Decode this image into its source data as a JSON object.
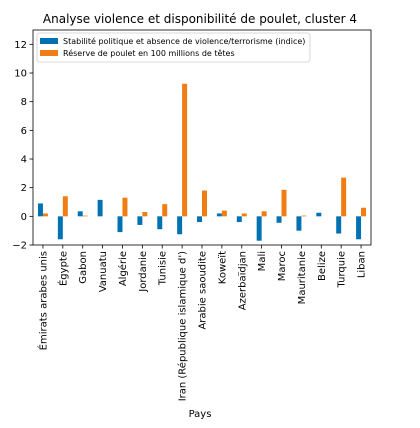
{
  "chart_data": {
    "type": "bar",
    "title": "Analyse violence et disponibilité de poulet, cluster 4",
    "xlabel": "Pays",
    "ylabel": "",
    "ylim": [
      -2,
      13
    ],
    "yticks": [
      -2,
      0,
      2,
      4,
      6,
      8,
      10,
      12
    ],
    "legend_position": "top-left",
    "grid": false,
    "categories": [
      "Émirats arabes unis",
      "Égypte",
      "Gabon",
      "Vanuatu",
      "Algérie",
      "Jordanie",
      "Tunisie",
      "Iran (République islamique d')",
      "Arabie saoudite",
      "Koweït",
      "Azerbaïdjan",
      "Mali",
      "Maroc",
      "Mauritanie",
      "Belize",
      "Turquie",
      "Liban"
    ],
    "series": [
      {
        "name": "Stabilité politique et absence de violence/terrorisme (indice)",
        "color": "#0072b2",
        "values": [
          0.9,
          -1.6,
          0.35,
          1.15,
          -1.1,
          -0.6,
          -0.9,
          -1.25,
          -0.4,
          0.2,
          -0.4,
          -1.7,
          -0.45,
          -1.0,
          0.25,
          -1.2,
          -1.6
        ]
      },
      {
        "name": "Réserve de poulet en 100 millions de têtes",
        "color": "#f07c14",
        "values": [
          0.2,
          1.4,
          0.05,
          0.0,
          1.3,
          0.3,
          0.85,
          9.25,
          1.8,
          0.4,
          0.2,
          0.35,
          1.85,
          0.05,
          0.0,
          2.7,
          0.6
        ]
      }
    ]
  }
}
